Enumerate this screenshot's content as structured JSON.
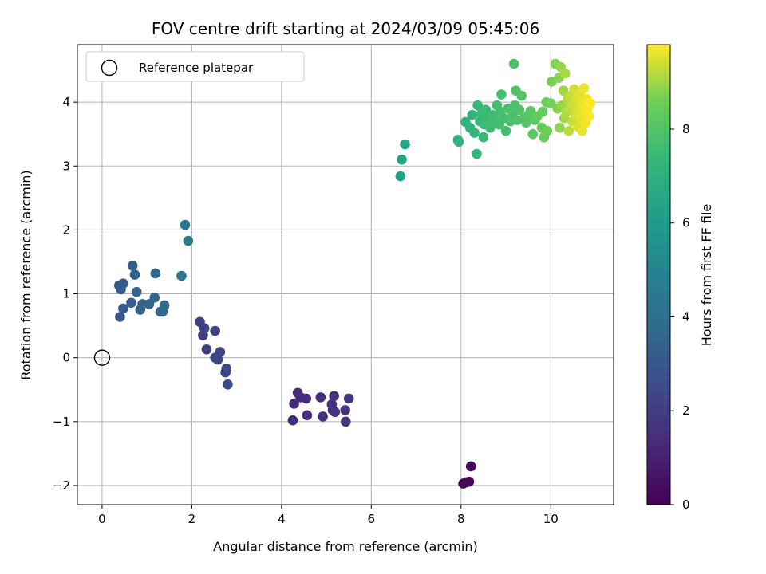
{
  "chart_data": {
    "type": "scatter",
    "title": "FOV centre drift starting at 2024/03/09 05:45:06",
    "xlabel": "Angular distance from reference (arcmin)",
    "ylabel": "Rotation from reference (arcmin)",
    "colorbar_label": "Hours from first FF file",
    "xlim": [
      -0.55,
      11.4
    ],
    "ylim": [
      -2.3,
      4.9
    ],
    "clim": [
      0,
      9.8
    ],
    "x_ticks": [
      0,
      2,
      4,
      6,
      8,
      10
    ],
    "y_ticks": [
      -2,
      -1,
      0,
      1,
      2,
      3,
      4
    ],
    "colorbar_ticks": [
      0,
      2,
      4,
      6,
      8
    ],
    "colormap": "viridis",
    "grid": true,
    "legend": {
      "position": "top-left",
      "entries": [
        "Reference platepar"
      ]
    },
    "reference_point": {
      "x": 0,
      "y": 0,
      "label": "Reference platepar"
    },
    "points": [
      {
        "x": 8.05,
        "y": -1.97,
        "h": 0.1
      },
      {
        "x": 8.12,
        "y": -1.95,
        "h": 0.15
      },
      {
        "x": 8.18,
        "y": -1.94,
        "h": 0.2
      },
      {
        "x": 8.22,
        "y": -1.7,
        "h": 0.25
      },
      {
        "x": 4.25,
        "y": -0.98,
        "h": 1.3
      },
      {
        "x": 4.28,
        "y": -0.72,
        "h": 1.35
      },
      {
        "x": 4.36,
        "y": -0.55,
        "h": 1.4
      },
      {
        "x": 4.42,
        "y": -0.62,
        "h": 1.42
      },
      {
        "x": 4.55,
        "y": -0.64,
        "h": 1.45
      },
      {
        "x": 4.57,
        "y": -0.9,
        "h": 1.47
      },
      {
        "x": 4.87,
        "y": -0.62,
        "h": 1.5
      },
      {
        "x": 4.92,
        "y": -0.92,
        "h": 1.52
      },
      {
        "x": 5.12,
        "y": -0.73,
        "h": 1.55
      },
      {
        "x": 5.14,
        "y": -0.82,
        "h": 1.57
      },
      {
        "x": 5.17,
        "y": -0.6,
        "h": 1.6
      },
      {
        "x": 5.19,
        "y": -0.85,
        "h": 1.62
      },
      {
        "x": 5.42,
        "y": -0.82,
        "h": 1.65
      },
      {
        "x": 5.43,
        "y": -1.0,
        "h": 1.67
      },
      {
        "x": 5.5,
        "y": -0.64,
        "h": 1.7
      },
      {
        "x": 2.18,
        "y": 0.56,
        "h": 2.0
      },
      {
        "x": 2.25,
        "y": 0.35,
        "h": 2.05
      },
      {
        "x": 2.28,
        "y": 0.46,
        "h": 2.1
      },
      {
        "x": 2.33,
        "y": 0.13,
        "h": 2.15
      },
      {
        "x": 2.52,
        "y": 0.42,
        "h": 2.2
      },
      {
        "x": 2.52,
        "y": 0.0,
        "h": 2.25
      },
      {
        "x": 2.58,
        "y": -0.03,
        "h": 2.3
      },
      {
        "x": 2.63,
        "y": 0.09,
        "h": 2.35
      },
      {
        "x": 2.75,
        "y": -0.23,
        "h": 2.4
      },
      {
        "x": 2.77,
        "y": -0.17,
        "h": 2.45
      },
      {
        "x": 2.8,
        "y": -0.42,
        "h": 2.5
      },
      {
        "x": 0.38,
        "y": 1.13,
        "h": 3.0
      },
      {
        "x": 0.4,
        "y": 0.64,
        "h": 3.05
      },
      {
        "x": 0.42,
        "y": 1.07,
        "h": 3.1
      },
      {
        "x": 0.47,
        "y": 0.77,
        "h": 3.15
      },
      {
        "x": 0.47,
        "y": 1.16,
        "h": 3.2
      },
      {
        "x": 0.65,
        "y": 0.86,
        "h": 3.25
      },
      {
        "x": 0.68,
        "y": 1.44,
        "h": 3.3
      },
      {
        "x": 0.73,
        "y": 1.3,
        "h": 3.35
      },
      {
        "x": 0.77,
        "y": 1.03,
        "h": 3.4
      },
      {
        "x": 0.85,
        "y": 0.75,
        "h": 3.45
      },
      {
        "x": 0.9,
        "y": 0.84,
        "h": 3.5
      },
      {
        "x": 1.05,
        "y": 0.84,
        "h": 3.55
      },
      {
        "x": 1.17,
        "y": 0.94,
        "h": 3.6
      },
      {
        "x": 1.19,
        "y": 1.32,
        "h": 3.65
      },
      {
        "x": 1.3,
        "y": 0.72,
        "h": 3.7
      },
      {
        "x": 1.35,
        "y": 0.72,
        "h": 3.75
      },
      {
        "x": 1.39,
        "y": 0.82,
        "h": 3.8
      },
      {
        "x": 1.77,
        "y": 1.28,
        "h": 4.3
      },
      {
        "x": 1.85,
        "y": 2.08,
        "h": 4.4
      },
      {
        "x": 1.92,
        "y": 1.83,
        "h": 4.5
      },
      {
        "x": 6.65,
        "y": 2.84,
        "h": 6.3
      },
      {
        "x": 6.68,
        "y": 3.1,
        "h": 6.4
      },
      {
        "x": 6.75,
        "y": 3.34,
        "h": 6.5
      },
      {
        "x": 7.93,
        "y": 3.41,
        "h": 7.0
      },
      {
        "x": 7.95,
        "y": 3.38,
        "h": 7.05
      },
      {
        "x": 8.1,
        "y": 3.69,
        "h": 7.1
      },
      {
        "x": 8.2,
        "y": 3.6,
        "h": 7.15
      },
      {
        "x": 8.25,
        "y": 3.8,
        "h": 7.2
      },
      {
        "x": 8.3,
        "y": 3.52,
        "h": 7.25
      },
      {
        "x": 8.35,
        "y": 3.19,
        "h": 7.3
      },
      {
        "x": 8.37,
        "y": 3.95,
        "h": 7.35
      },
      {
        "x": 8.42,
        "y": 3.7,
        "h": 7.4
      },
      {
        "x": 8.45,
        "y": 3.82,
        "h": 7.42
      },
      {
        "x": 8.5,
        "y": 3.45,
        "h": 7.45
      },
      {
        "x": 8.52,
        "y": 3.65,
        "h": 7.47
      },
      {
        "x": 8.55,
        "y": 3.88,
        "h": 7.5
      },
      {
        "x": 8.6,
        "y": 3.75,
        "h": 7.52
      },
      {
        "x": 8.65,
        "y": 3.6,
        "h": 7.55
      },
      {
        "x": 8.7,
        "y": 3.8,
        "h": 7.57
      },
      {
        "x": 8.75,
        "y": 3.72,
        "h": 7.6
      },
      {
        "x": 8.8,
        "y": 3.95,
        "h": 7.62
      },
      {
        "x": 8.85,
        "y": 3.65,
        "h": 7.65
      },
      {
        "x": 8.88,
        "y": 3.85,
        "h": 7.67
      },
      {
        "x": 8.9,
        "y": 4.12,
        "h": 7.7
      },
      {
        "x": 8.95,
        "y": 3.75,
        "h": 7.72
      },
      {
        "x": 9.0,
        "y": 3.55,
        "h": 7.75
      },
      {
        "x": 9.05,
        "y": 3.9,
        "h": 7.77
      },
      {
        "x": 9.1,
        "y": 3.7,
        "h": 7.8
      },
      {
        "x": 9.15,
        "y": 3.82,
        "h": 7.82
      },
      {
        "x": 9.18,
        "y": 4.6,
        "h": 7.85
      },
      {
        "x": 9.2,
        "y": 3.95,
        "h": 7.87
      },
      {
        "x": 9.22,
        "y": 4.18,
        "h": 7.9
      },
      {
        "x": 9.25,
        "y": 3.72,
        "h": 7.92
      },
      {
        "x": 9.3,
        "y": 3.88,
        "h": 7.95
      },
      {
        "x": 9.35,
        "y": 4.1,
        "h": 7.97
      },
      {
        "x": 9.4,
        "y": 3.75,
        "h": 8.0
      },
      {
        "x": 9.45,
        "y": 3.68,
        "h": 8.05
      },
      {
        "x": 9.5,
        "y": 3.8,
        "h": 8.1
      },
      {
        "x": 9.55,
        "y": 3.86,
        "h": 8.15
      },
      {
        "x": 9.6,
        "y": 3.5,
        "h": 8.2
      },
      {
        "x": 9.65,
        "y": 3.72,
        "h": 8.25
      },
      {
        "x": 9.7,
        "y": 3.78,
        "h": 8.3
      },
      {
        "x": 9.8,
        "y": 3.6,
        "h": 8.35
      },
      {
        "x": 9.82,
        "y": 3.85,
        "h": 8.4
      },
      {
        "x": 9.85,
        "y": 3.45,
        "h": 8.45
      },
      {
        "x": 9.9,
        "y": 4.0,
        "h": 8.5
      },
      {
        "x": 9.92,
        "y": 3.55,
        "h": 8.55
      },
      {
        "x": 10.0,
        "y": 3.98,
        "h": 8.6
      },
      {
        "x": 10.02,
        "y": 4.32,
        "h": 8.65
      },
      {
        "x": 10.1,
        "y": 4.6,
        "h": 8.7
      },
      {
        "x": 10.15,
        "y": 3.9,
        "h": 8.75
      },
      {
        "x": 10.18,
        "y": 4.38,
        "h": 8.8
      },
      {
        "x": 10.2,
        "y": 3.6,
        "h": 8.85
      },
      {
        "x": 10.22,
        "y": 4.55,
        "h": 8.9
      },
      {
        "x": 10.25,
        "y": 3.95,
        "h": 8.95
      },
      {
        "x": 10.28,
        "y": 4.18,
        "h": 9.0
      },
      {
        "x": 10.3,
        "y": 3.75,
        "h": 9.05
      },
      {
        "x": 10.32,
        "y": 4.45,
        "h": 9.1
      },
      {
        "x": 10.35,
        "y": 3.85,
        "h": 9.15
      },
      {
        "x": 10.38,
        "y": 4.05,
        "h": 9.2
      },
      {
        "x": 10.4,
        "y": 3.55,
        "h": 9.25
      },
      {
        "x": 10.42,
        "y": 3.9,
        "h": 9.28
      },
      {
        "x": 10.45,
        "y": 4.1,
        "h": 9.3
      },
      {
        "x": 10.48,
        "y": 3.7,
        "h": 9.33
      },
      {
        "x": 10.5,
        "y": 3.95,
        "h": 9.36
      },
      {
        "x": 10.52,
        "y": 4.2,
        "h": 9.4
      },
      {
        "x": 10.55,
        "y": 3.8,
        "h": 9.43
      },
      {
        "x": 10.58,
        "y": 4.05,
        "h": 9.46
      },
      {
        "x": 10.6,
        "y": 3.62,
        "h": 9.5
      },
      {
        "x": 10.62,
        "y": 3.88,
        "h": 9.52
      },
      {
        "x": 10.64,
        "y": 4.12,
        "h": 9.55
      },
      {
        "x": 10.66,
        "y": 3.75,
        "h": 9.57
      },
      {
        "x": 10.68,
        "y": 4.0,
        "h": 9.6
      },
      {
        "x": 10.7,
        "y": 3.55,
        "h": 9.62
      },
      {
        "x": 10.72,
        "y": 3.92,
        "h": 9.64
      },
      {
        "x": 10.74,
        "y": 4.22,
        "h": 9.66
      },
      {
        "x": 10.76,
        "y": 3.82,
        "h": 9.68
      },
      {
        "x": 10.78,
        "y": 3.68,
        "h": 9.7
      },
      {
        "x": 10.8,
        "y": 4.05,
        "h": 9.72
      },
      {
        "x": 10.82,
        "y": 3.9,
        "h": 9.74
      },
      {
        "x": 10.85,
        "y": 3.78,
        "h": 9.76
      },
      {
        "x": 10.88,
        "y": 3.98,
        "h": 9.78
      }
    ]
  }
}
